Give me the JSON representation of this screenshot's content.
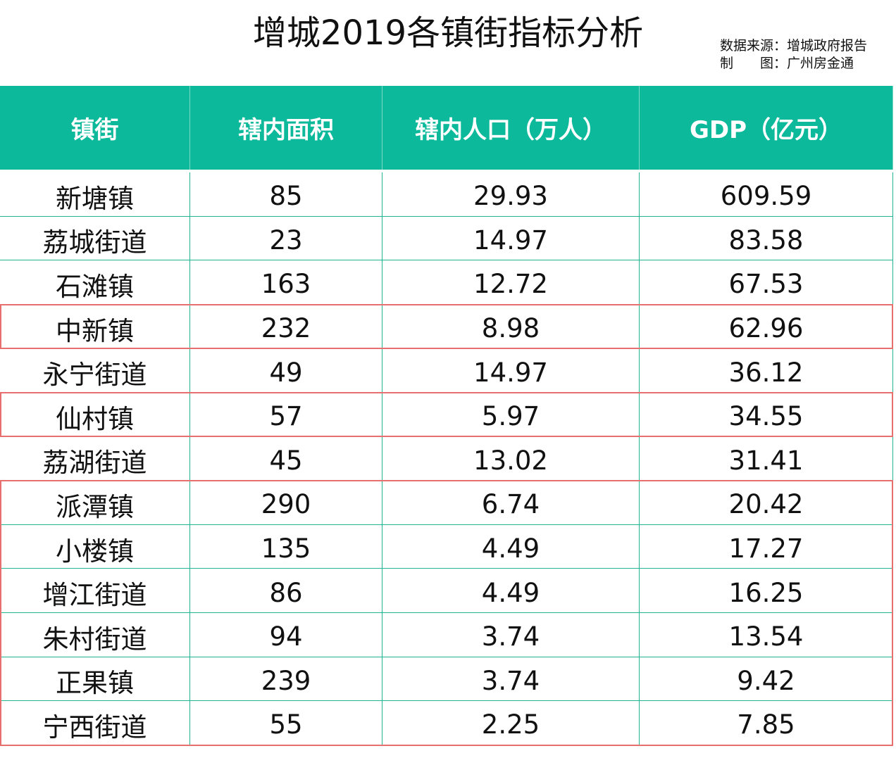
{
  "header": {
    "title": "增城2019各镇街指标分析",
    "source": "数据来源：增城政府报告",
    "author": "制　　图：广州房金通"
  },
  "table": {
    "columns": [
      "镇街",
      "辖内面积",
      "辖内人口（万人）",
      "GDP（亿元）"
    ],
    "rows": [
      [
        "新塘镇",
        85,
        29.93,
        609.59
      ],
      [
        "荔城街道",
        23,
        14.97,
        83.58
      ],
      [
        "石滩镇",
        163,
        12.72,
        67.53
      ],
      [
        "中新镇",
        232,
        8.98,
        62.96
      ],
      [
        "永宁街道",
        49,
        14.97,
        36.12
      ],
      [
        "仙村镇",
        57,
        5.97,
        34.55
      ],
      [
        "荔湖街道",
        45,
        13.02,
        31.41
      ],
      [
        "派潭镇",
        290,
        6.74,
        20.42
      ],
      [
        "小楼镇",
        135,
        4.49,
        17.27
      ],
      [
        "增江街道",
        86,
        4.49,
        16.25
      ],
      [
        "朱村街道",
        94,
        3.74,
        13.54
      ],
      [
        "正果镇",
        239,
        3.74,
        9.42
      ],
      [
        "宁西街道",
        55,
        2.25,
        7.85
      ]
    ]
  }
}
